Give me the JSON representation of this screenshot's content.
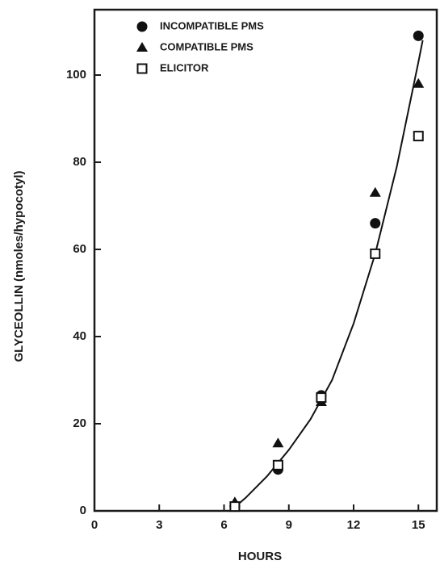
{
  "chart_data": {
    "type": "scatter",
    "x_label": "HOURS",
    "y_label": "GLYCEOLLIN (nmoles/hypocotyl)",
    "x": [
      6.5,
      8.5,
      10.5,
      13,
      15
    ],
    "series": [
      {
        "name": "INCOMPATIBLE PMS",
        "color": "#111111",
        "marker": "circle",
        "values": [
          1,
          9.5,
          26.5,
          66,
          109
        ]
      },
      {
        "name": "COMPATIBLE PMS",
        "color": "#111111",
        "marker": "triangle",
        "values": [
          2,
          15.5,
          25,
          73,
          98
        ]
      },
      {
        "name": "ELICITOR",
        "color": "#111111",
        "marker": "square",
        "values": [
          1,
          10.5,
          26,
          59,
          86
        ]
      }
    ],
    "curve": {
      "color": "#111111",
      "x": [
        6.3,
        7,
        8,
        9,
        10,
        11,
        12,
        13,
        14,
        15,
        15.2
      ],
      "values": [
        0,
        3,
        8,
        14,
        21,
        30,
        43,
        59,
        79,
        103,
        108
      ]
    },
    "xlim": [
      0,
      15.85
    ],
    "ylim": [
      0,
      115
    ],
    "xticks": [
      0,
      3,
      6,
      9,
      12,
      15
    ],
    "yticks": [
      0,
      20,
      40,
      60,
      80,
      100
    ],
    "legend": "upper-left"
  }
}
